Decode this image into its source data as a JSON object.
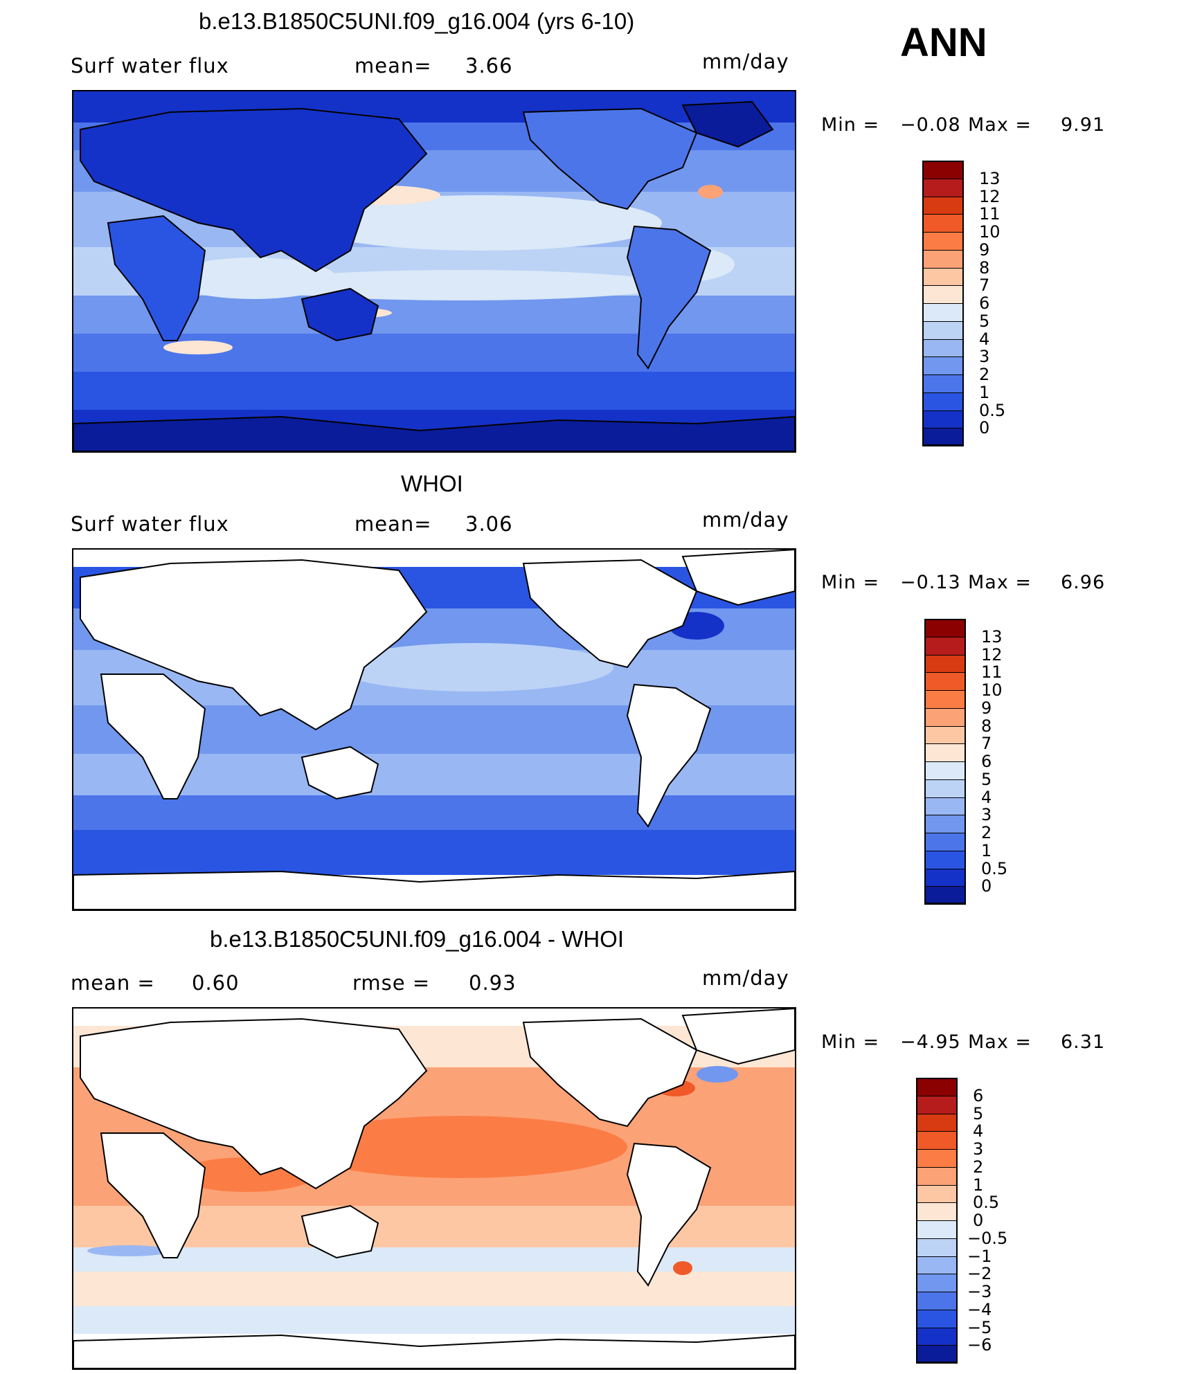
{
  "season": "ANN",
  "panels": [
    {
      "title": "b.e13.B1850C5UNI.f09_g16.004 (yrs 6-10)",
      "left_label": "Surf water flux",
      "mid_label": "mean=",
      "mid_value": "3.66",
      "units": "mm/day",
      "min_label": "Min =",
      "min_value": "−0.08",
      "max_label": "Max =",
      "max_value": "9.91",
      "colorbar_labels": [
        "13",
        "12",
        "11",
        "10",
        "9",
        "8",
        "7",
        "6",
        "5",
        "4",
        "3",
        "2",
        "1",
        "0.5",
        "0"
      ],
      "colorbar_colors": [
        "#8b0000",
        "#b71c1c",
        "#d83a12",
        "#f05a28",
        "#fb7d45",
        "#fca277",
        "#fec7a4",
        "#fde6d4",
        "#dbe9f8",
        "#bcd3f6",
        "#99b7f2",
        "#7197ee",
        "#4c75ea",
        "#2a55e3",
        "#1432c8",
        "#0a1c9a"
      ]
    },
    {
      "title": "WHOI",
      "left_label": "Surf water flux",
      "mid_label": "mean=",
      "mid_value": "3.06",
      "units": "mm/day",
      "min_label": "Min =",
      "min_value": "−0.13",
      "max_label": "Max =",
      "max_value": "6.96",
      "colorbar_labels": [
        "13",
        "12",
        "11",
        "10",
        "9",
        "8",
        "7",
        "6",
        "5",
        "4",
        "3",
        "2",
        "1",
        "0.5",
        "0"
      ],
      "colorbar_colors": [
        "#8b0000",
        "#b71c1c",
        "#d83a12",
        "#f05a28",
        "#fb7d45",
        "#fca277",
        "#fec7a4",
        "#fde6d4",
        "#dbe9f8",
        "#bcd3f6",
        "#99b7f2",
        "#7197ee",
        "#4c75ea",
        "#2a55e3",
        "#1432c8",
        "#0a1c9a"
      ]
    },
    {
      "title": "b.e13.B1850C5UNI.f09_g16.004 - WHOI",
      "left_label": "mean =",
      "left_value": "0.60",
      "mid_label": "rmse =",
      "mid_value": "0.93",
      "units": "mm/day",
      "min_label": "Min =",
      "min_value": "−4.95",
      "max_label": "Max =",
      "max_value": "6.31",
      "colorbar_labels": [
        "6",
        "5",
        "4",
        "3",
        "2",
        "1",
        "0.5",
        "0",
        "−0.5",
        "−1",
        "−2",
        "−3",
        "−4",
        "−5",
        "−6"
      ],
      "colorbar_colors": [
        "#8b0000",
        "#b71c1c",
        "#d83a12",
        "#f05a28",
        "#fb7d45",
        "#fca277",
        "#fec7a4",
        "#fde6d4",
        "#dbe9f8",
        "#bcd3f6",
        "#99b7f2",
        "#7197ee",
        "#4c75ea",
        "#2a55e3",
        "#1432c8",
        "#0a1c9a"
      ]
    }
  ]
}
